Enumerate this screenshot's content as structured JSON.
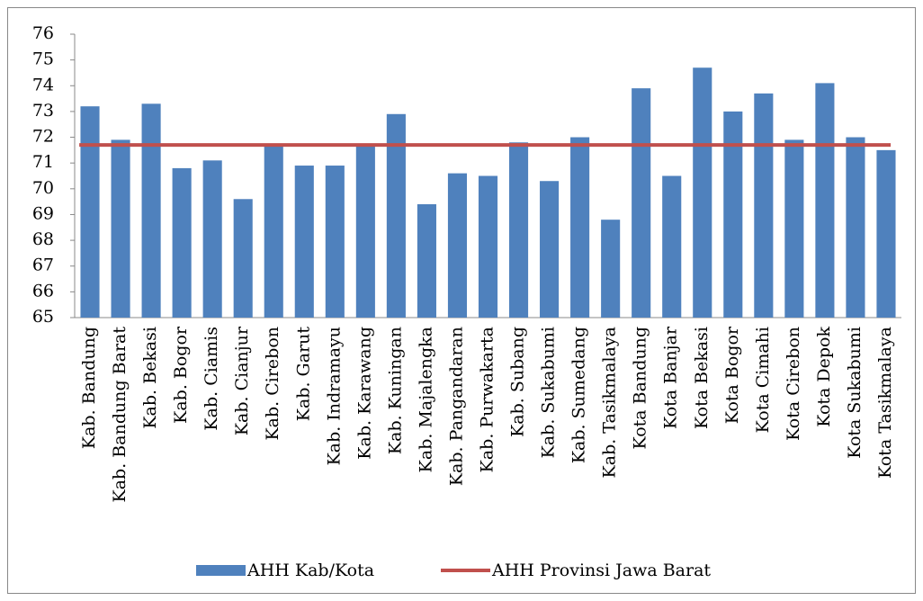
{
  "chart_data": {
    "type": "bar_line",
    "categories": [
      "Kab. Bandung",
      "Kab. Bandung Barat",
      "Kab. Bekasi",
      "Kab. Bogor",
      "Kab. Ciamis",
      "Kab. Cianjur",
      "Kab. Cirebon",
      "Kab. Garut",
      "Kab. Indramayu",
      "Kab. Karawang",
      "Kab. Kuningan",
      "Kab. Majalengka",
      "Kab. Pangandaran",
      "Kab. Purwakarta",
      "Kab. Subang",
      "Kab. Sukabumi",
      "Kab. Sumedang",
      "Kab. Tasikmalaya",
      "Kota Bandung",
      "Kota Banjar",
      "Kota Bekasi",
      "Kota Bogor",
      "Kota Cimahi",
      "Kota Cirebon",
      "Kota Depok",
      "Kota Sukabumi",
      "Kota Tasikmalaya"
    ],
    "series": [
      {
        "name": "AHH Kab/Kota",
        "type": "bar",
        "color": "#4f81bd",
        "values": [
          73.2,
          71.9,
          73.3,
          70.8,
          71.1,
          69.6,
          71.7,
          70.9,
          70.9,
          71.7,
          72.9,
          69.4,
          70.6,
          70.5,
          71.8,
          70.3,
          72.0,
          68.8,
          73.9,
          70.5,
          74.7,
          73.0,
          73.7,
          71.9,
          74.1,
          72.0,
          71.5
        ]
      },
      {
        "name": "AHH Provinsi Jawa Barat",
        "type": "line",
        "color": "#c0504d",
        "values": [
          71.7,
          71.7,
          71.7,
          71.7,
          71.7,
          71.7,
          71.7,
          71.7,
          71.7,
          71.7,
          71.7,
          71.7,
          71.7,
          71.7,
          71.7,
          71.7,
          71.7,
          71.7,
          71.7,
          71.7,
          71.7,
          71.7,
          71.7,
          71.7,
          71.7,
          71.7,
          71.7
        ]
      }
    ],
    "ylim": [
      65,
      76
    ],
    "yticks": [
      65,
      66,
      67,
      68,
      69,
      70,
      71,
      72,
      73,
      74,
      75,
      76
    ],
    "legend": "bottom"
  }
}
